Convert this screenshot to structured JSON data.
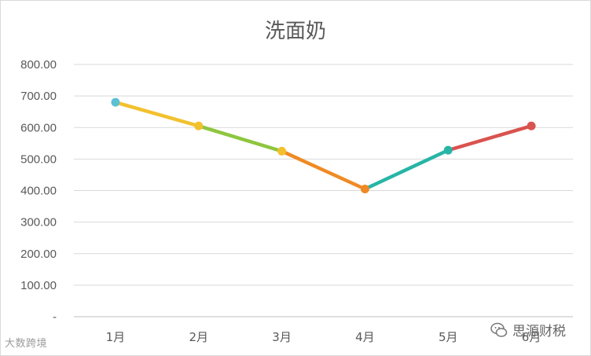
{
  "chart_data": {
    "type": "line",
    "title": "洗面奶",
    "categories": [
      "1月",
      "2月",
      "3月",
      "4月",
      "5月",
      "6月"
    ],
    "values": [
      680,
      605,
      525,
      405,
      528,
      605
    ],
    "yticks": [
      "-",
      "100.00",
      "200.00",
      "300.00",
      "400.00",
      "500.00",
      "600.00",
      "700.00",
      "800.00"
    ],
    "ylim": [
      0,
      800
    ],
    "grid": true,
    "legend": "none",
    "point_colors": [
      "#5bc0d3",
      "#f2c12e",
      "#f2c12e",
      "#f08a24",
      "#26b5a6",
      "#d9534f"
    ],
    "segment_colors": [
      "#f2c12e",
      "#8ec63f",
      "#f08a24",
      "#26b5a6",
      "#d9534f"
    ]
  },
  "watermark": {
    "left_text": "大数跨境",
    "right_text": "思源财税"
  }
}
